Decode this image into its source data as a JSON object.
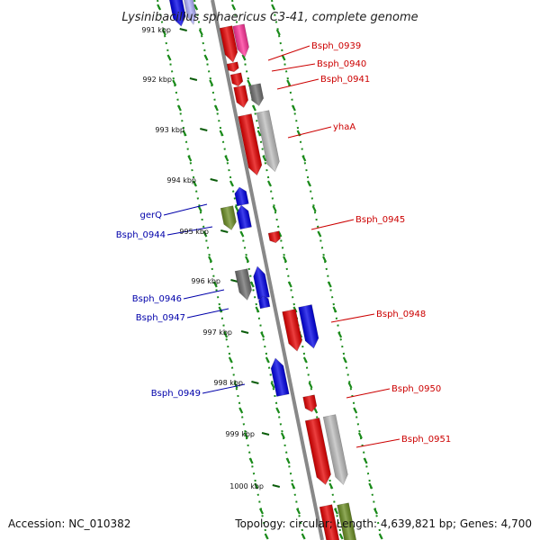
{
  "title": "Lysinibacillus sphaericus C3-41, complete genome",
  "footer": {
    "accession": "Accession: NC_010382",
    "summary": "Topology: circular; Length: 4,639,821 bp; Genes: 4,700"
  },
  "ticks": [
    "991 kbp",
    "992 kbp",
    "993 kbp",
    "994 kbp",
    "995 kbp",
    "996 kbp",
    "997 kbp",
    "998 kbp",
    "999 kbp",
    "1000 kbp"
  ],
  "gene_labels": {
    "right": [
      "Bsph_0939",
      "Bsph_0940",
      "Bsph_0941",
      "yhaA",
      "Bsph_0945",
      "Bsph_0948",
      "Bsph_0950",
      "Bsph_0951"
    ],
    "left": [
      "gerQ",
      "Bsph_0944",
      "Bsph_0946",
      "Bsph_0947",
      "Bsph_0949"
    ]
  },
  "colors": {
    "forward_strand": "#e60000",
    "reverse_strand": "#0000e6",
    "right_labels": "#cc0000",
    "left_labels": "#0000aa",
    "tick_marks": "#1a8a1a",
    "backbone": "#888888",
    "gray_feature": "#6e6e6e",
    "light_gray_feature": "#bdbdbd",
    "pink_feature": "#ff3399",
    "olive_feature": "#6b8e23"
  }
}
